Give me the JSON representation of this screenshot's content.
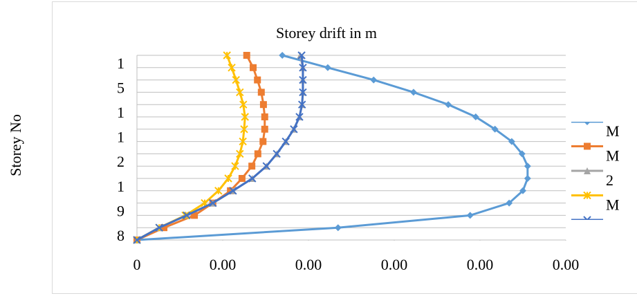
{
  "chart_data": {
    "type": "line",
    "title": "Storey drift in m",
    "y_label": "Storey No",
    "categories": [
      "8",
      null,
      "9",
      null,
      "1",
      null,
      "2",
      null,
      "1",
      null,
      "1",
      null,
      "5",
      null,
      "1",
      null
    ],
    "xlim": [
      0,
      0.01
    ],
    "xticks": [
      0,
      {
        "value": 0.002,
        "label": "0.00"
      },
      {
        "value": 0.004,
        "label": "0.00"
      },
      {
        "value": 0.006,
        "label": "0.00"
      },
      {
        "value": 0.008,
        "label": "0.00"
      },
      {
        "value": 0.01,
        "label": "0.00"
      }
    ],
    "grid": true,
    "series": [
      {
        "name": "M",
        "color": "#5b9bd5",
        "marker": "diamond",
        "values": [
          0,
          0.00469,
          0.00777,
          0.00868,
          0.009,
          0.00911,
          0.00911,
          0.00898,
          0.00874,
          0.00835,
          0.0079,
          0.00726,
          0.00645,
          0.00552,
          0.00445,
          0.00339
        ]
      },
      {
        "name": "M",
        "color": "#ed7d31",
        "marker": "square",
        "values": [
          0,
          0.00063,
          0.00134,
          0.00177,
          0.00218,
          0.00245,
          0.00268,
          0.00282,
          0.00294,
          0.00298,
          0.00298,
          0.00295,
          0.0029,
          0.00281,
          0.00271,
          0.00256
        ]
      },
      {
        "name": "2",
        "color": "#a5a5a5",
        "marker": "triangle",
        "values": [
          0,
          0.00052,
          0.00116,
          0.00177,
          0.00224,
          0.00269,
          0.00302,
          0.00326,
          0.00347,
          0.00366,
          0.00379,
          0.00385,
          0.00387,
          0.00387,
          0.00387,
          0.00381
        ]
      },
      {
        "name": "M",
        "color": "#ffc000",
        "marker": "star",
        "values": [
          0,
          0.00052,
          0.00113,
          0.00158,
          0.0019,
          0.00213,
          0.00229,
          0.0024,
          0.00247,
          0.0025,
          0.00252,
          0.00248,
          0.0024,
          0.00231,
          0.00221,
          0.0021
        ]
      },
      {
        "color": "#4472c4",
        "marker": "x",
        "values": [
          0,
          0.00052,
          0.00116,
          0.00177,
          0.00224,
          0.00269,
          0.00302,
          0.00326,
          0.00347,
          0.00366,
          0.00379,
          0.00385,
          0.00387,
          0.00387,
          0.00387,
          0.00384
        ]
      }
    ]
  }
}
